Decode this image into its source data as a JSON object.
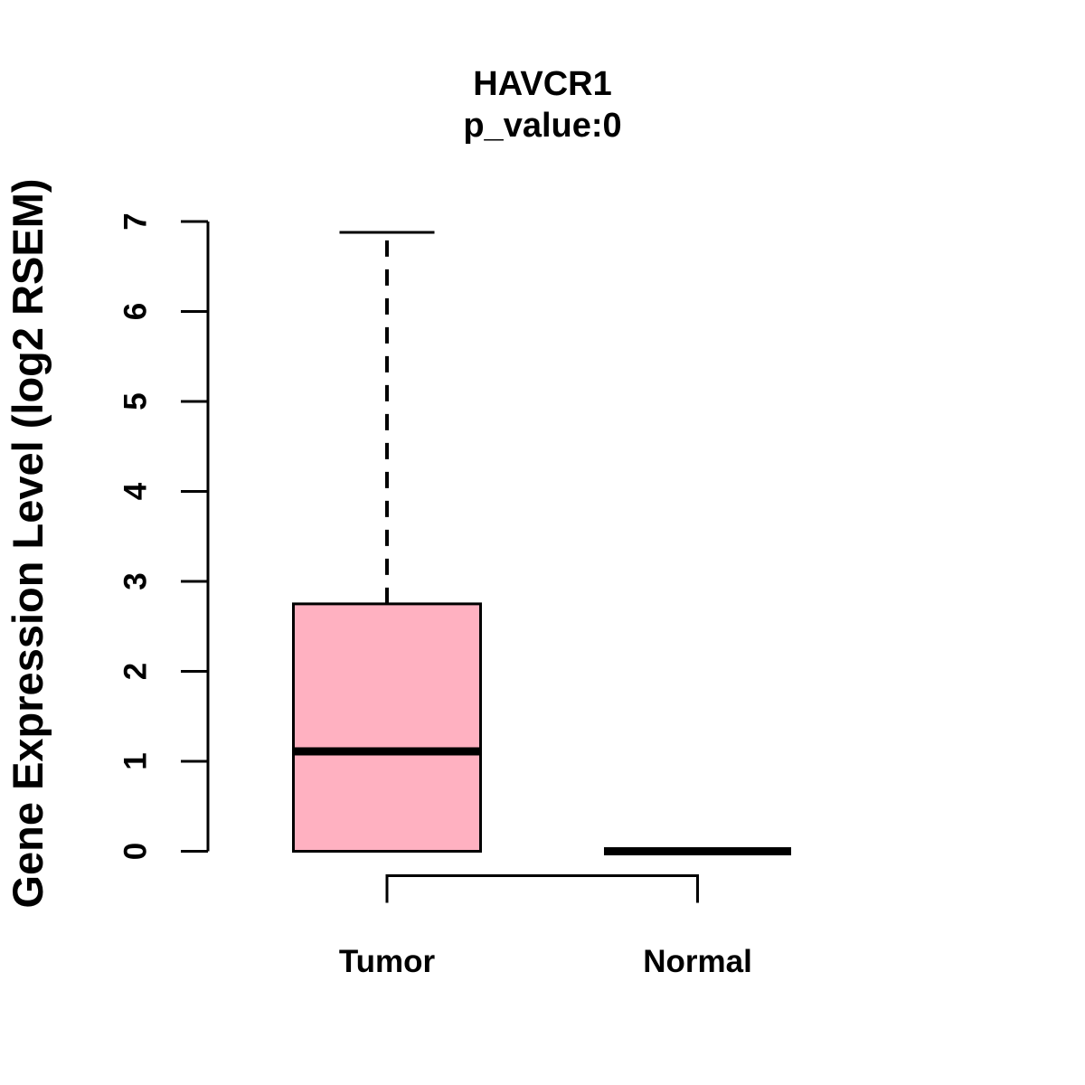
{
  "colors": {
    "background": "#FFFFFF",
    "line": "#000000",
    "box_fill": "#FFB1C1",
    "text": "#000000"
  },
  "chart_data": {
    "type": "box",
    "title": "HAVCR1",
    "subtitle": "p_value:0",
    "ylabel": "Gene Expression Level (log2 RSEM)",
    "ylim": [
      0,
      7
    ],
    "yticks": [
      0,
      1,
      2,
      3,
      4,
      5,
      6,
      7
    ],
    "grid": "off",
    "legend": "none",
    "categories": [
      "Tumor",
      "Normal"
    ],
    "series": [
      {
        "name": "Tumor",
        "min": 0,
        "q1": 0,
        "median": 1.11,
        "q3": 2.75,
        "max": 6.88,
        "whisker_style": "dashed",
        "fill": "#FFB1C1"
      },
      {
        "name": "Normal",
        "min": 0,
        "q1": 0,
        "median": 0,
        "q3": 0,
        "max": 0,
        "whisker_style": "none",
        "fill": "#FFB1C1"
      }
    ],
    "annotations": [
      {
        "kind": "comparison-bracket",
        "between": [
          "Tumor",
          "Normal"
        ]
      }
    ]
  }
}
